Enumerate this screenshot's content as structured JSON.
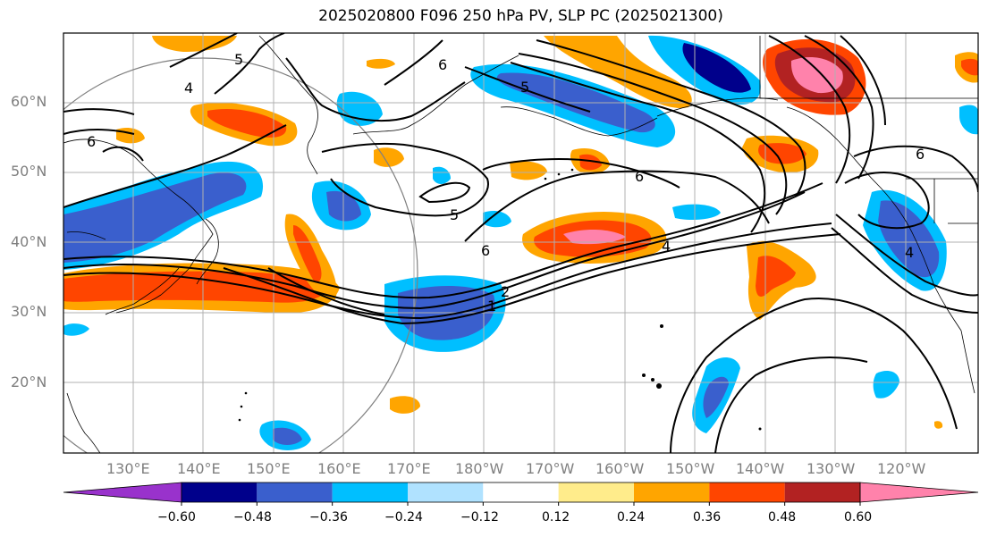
{
  "title": "2025020800 F096 250 hPa PV, SLP PC (2025021300)",
  "lat_labels": [
    "60°N",
    "50°N",
    "40°N",
    "30°N",
    "20°N"
  ],
  "lon_labels": [
    "130°E",
    "140°E",
    "150°E",
    "160°E",
    "170°E",
    "180°W",
    "170°W",
    "160°W",
    "150°W",
    "140°W",
    "130°W",
    "120°W"
  ],
  "contour_labels": [
    "5",
    "4",
    "6",
    "6",
    "5",
    "6",
    "5",
    "6",
    "4",
    "2",
    "1",
    "4",
    "6"
  ],
  "colorbar": {
    "tick_labels": [
      "−0.60",
      "−0.48",
      "−0.36",
      "−0.24",
      "−0.12",
      "0.12",
      "0.24",
      "0.36",
      "0.48",
      "0.60"
    ],
    "colors": [
      "#9932cc",
      "#00008b",
      "#3a5fcd",
      "#00bfff",
      "#b0e2ff",
      "#ffffff",
      "#ffec8b",
      "#ffa500",
      "#ff4500",
      "#b22222",
      "#ff82ab"
    ]
  },
  "colors": {
    "purple": "#9932cc",
    "navy": "#00008b",
    "blue": "#3a5fcd",
    "cyan": "#00bfff",
    "lightblue": "#b0e2ff",
    "yellow": "#ffec8b",
    "orange": "#ffa500",
    "redorange": "#ff4500",
    "darkred": "#b22222",
    "pink": "#ff82ab",
    "grid": "#b0b0b0",
    "axislabel": "#7f7f7f"
  }
}
